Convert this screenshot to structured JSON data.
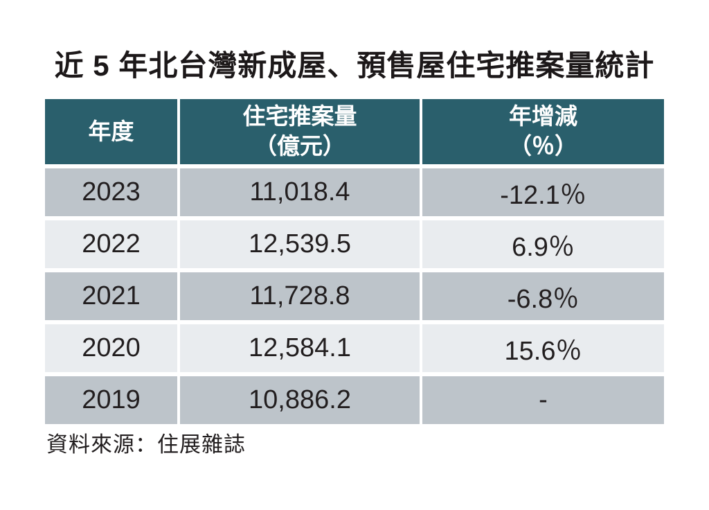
{
  "title": "近 5 年北台灣新成屋、預售屋住宅推案量統計",
  "source_note": "資料來源：住展雜誌",
  "colors": {
    "header_bg": "#2A5F6C",
    "header_text": "#FFFFFF",
    "row_odd_bg": "#BDC4CA",
    "row_even_bg": "#E9ECEF",
    "cell_text": "#221E1F",
    "page_bg": "#FFFFFF"
  },
  "table": {
    "header": {
      "year": "年度",
      "volume_line1": "住宅推案量",
      "volume_line2": "（億元）",
      "change_line1": "年增減",
      "change_line2": "（％）"
    },
    "rows": [
      {
        "year": "2023",
        "volume": "11,018.4",
        "change": "-12.1％"
      },
      {
        "year": "2022",
        "volume": "12,539.5",
        "change": "6.9％"
      },
      {
        "year": "2021",
        "volume": "11,728.8",
        "change": "-6.8％"
      },
      {
        "year": "2020",
        "volume": "12,584.1",
        "change": "15.6％"
      },
      {
        "year": "2019",
        "volume": "10,886.2",
        "change": "-"
      }
    ]
  },
  "chart_data": {
    "type": "table",
    "title": "近 5 年北台灣新成屋、預售屋住宅推案量統計",
    "columns": [
      "年度",
      "住宅推案量（億元）",
      "年增減（％）"
    ],
    "rows": [
      {
        "year": 2023,
        "volume_yi_yuan": 11018.4,
        "yoy_change_pct": -12.1
      },
      {
        "year": 2022,
        "volume_yi_yuan": 12539.5,
        "yoy_change_pct": 6.9
      },
      {
        "year": 2021,
        "volume_yi_yuan": 11728.8,
        "yoy_change_pct": -6.8
      },
      {
        "year": 2020,
        "volume_yi_yuan": 12584.1,
        "yoy_change_pct": 15.6
      },
      {
        "year": 2019,
        "volume_yi_yuan": 10886.2,
        "yoy_change_pct": null
      }
    ],
    "source": "資料來源：住展雜誌"
  }
}
